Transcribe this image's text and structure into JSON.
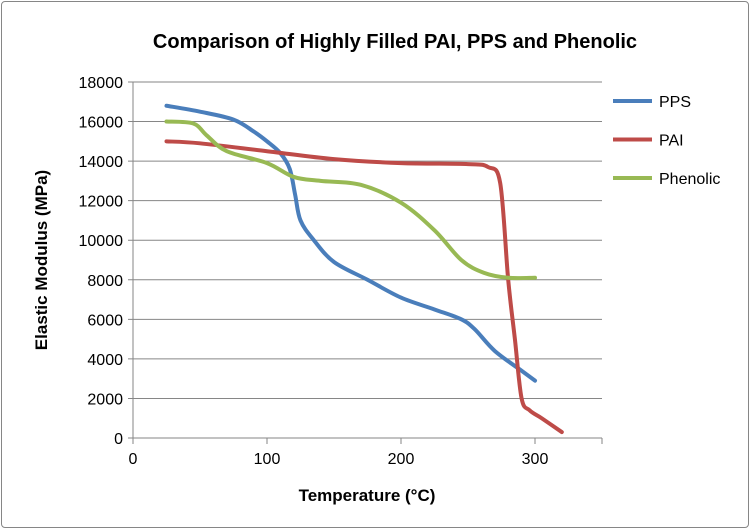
{
  "chart_data": {
    "type": "line",
    "title": "Comparison of Highly Filled PAI, PPS and Phenolic",
    "xlabel": "Temperature (°C)",
    "ylabel": "Elastic Modulus (MPa)",
    "xlim": [
      0,
      350
    ],
    "ylim": [
      0,
      18000
    ],
    "xticks": [
      0,
      100,
      200,
      300
    ],
    "yticks": [
      0,
      2000,
      4000,
      6000,
      8000,
      10000,
      12000,
      14000,
      16000,
      18000
    ],
    "grid": "horizontal",
    "legend_position": "right",
    "series": [
      {
        "name": "PPS",
        "color": "#4a7ebb",
        "points": [
          [
            25,
            16800
          ],
          [
            50,
            16500
          ],
          [
            75,
            16100
          ],
          [
            90,
            15500
          ],
          [
            100,
            15000
          ],
          [
            110,
            14400
          ],
          [
            117,
            13600
          ],
          [
            121,
            12300
          ],
          [
            125,
            11000
          ],
          [
            135,
            10000
          ],
          [
            150,
            8900
          ],
          [
            175,
            8000
          ],
          [
            200,
            7100
          ],
          [
            225,
            6500
          ],
          [
            245,
            6000
          ],
          [
            255,
            5500
          ],
          [
            270,
            4400
          ],
          [
            290,
            3400
          ],
          [
            300,
            2900
          ]
        ]
      },
      {
        "name": "PAI",
        "color": "#be4b48",
        "points": [
          [
            25,
            15000
          ],
          [
            50,
            14900
          ],
          [
            100,
            14500
          ],
          [
            150,
            14100
          ],
          [
            200,
            13900
          ],
          [
            250,
            13850
          ],
          [
            265,
            13700
          ],
          [
            274,
            12900
          ],
          [
            280,
            8000
          ],
          [
            285,
            5000
          ],
          [
            290,
            2000
          ],
          [
            296,
            1400
          ],
          [
            305,
            1000
          ],
          [
            320,
            300
          ]
        ]
      },
      {
        "name": "Phenolic",
        "color": "#98b954",
        "points": [
          [
            25,
            16000
          ],
          [
            45,
            15900
          ],
          [
            55,
            15300
          ],
          [
            70,
            14500
          ],
          [
            100,
            13900
          ],
          [
            120,
            13200
          ],
          [
            140,
            13000
          ],
          [
            170,
            12800
          ],
          [
            200,
            11900
          ],
          [
            225,
            10500
          ],
          [
            245,
            9000
          ],
          [
            262,
            8350
          ],
          [
            280,
            8100
          ],
          [
            300,
            8100
          ]
        ]
      }
    ]
  }
}
